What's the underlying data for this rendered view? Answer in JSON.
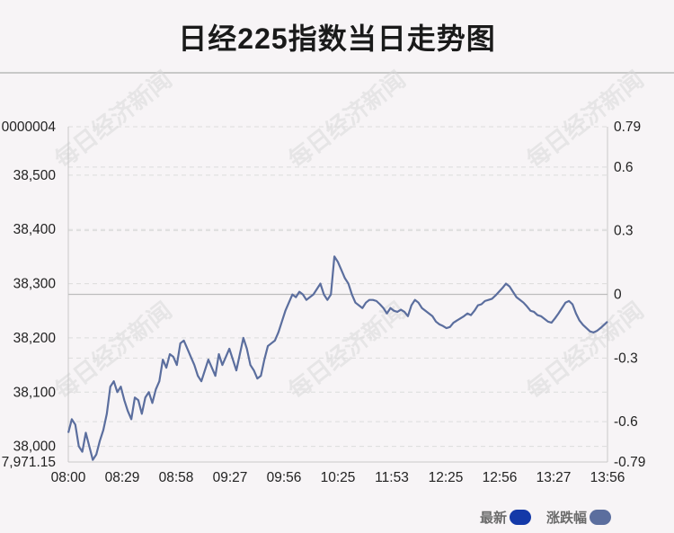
{
  "header": {
    "title": "日经225指数当日走势图"
  },
  "legend": [
    {
      "label": "最新",
      "color": "#1439a8"
    },
    {
      "label": "涨跌幅",
      "color": "#5b6e9e"
    }
  ],
  "watermark_text": "每日经济新闻",
  "colors": {
    "line": "#5b6e9e",
    "grid": "#dcdcdc",
    "baseline": "#bdbdbd"
  },
  "chart_data": {
    "type": "line",
    "title": "日经225指数当日走势图",
    "x_tick_labels": [
      "08:00",
      "08:29",
      "08:58",
      "09:27",
      "09:56",
      "10:25",
      "11:53",
      "12:25",
      "12:56",
      "13:27",
      "13:56"
    ],
    "y_left_tick_labels": [
      "38,000",
      "38,100",
      "38,200",
      "38,300",
      "38,400",
      "38,500"
    ],
    "y_left_tick_values": [
      38000,
      38100,
      38200,
      38300,
      38400,
      38500
    ],
    "y_left_top_label": "0000004",
    "y_left_bottom_label": "7,971.15",
    "ylim_left": [
      37971.15,
      38589.3
    ],
    "y_right_tick_labels": [
      "0.79",
      "0.6",
      "0.3",
      "0",
      "-0.3",
      "-0.6",
      "-0.79"
    ],
    "y_right_tick_values": [
      0.79,
      0.6,
      0.3,
      0,
      -0.3,
      -0.6,
      -0.79
    ],
    "ylim_right": [
      -0.79,
      0.79
    ],
    "grid": true,
    "legend_position": "bottom-right",
    "series": [
      {
        "name": "最新",
        "values": [
          38025,
          38050,
          38040,
          38000,
          37990,
          38025,
          38000,
          37975,
          37985,
          38010,
          38030,
          38060,
          38110,
          38120,
          38100,
          38110,
          38085,
          38065,
          38050,
          38090,
          38085,
          38060,
          38090,
          38100,
          38080,
          38105,
          38120,
          38160,
          38145,
          38170,
          38165,
          38150,
          38190,
          38195,
          38180,
          38165,
          38150,
          38130,
          38120,
          38140,
          38160,
          38145,
          38130,
          38170,
          38150,
          38165,
          38180,
          38160,
          38140,
          38170,
          38200,
          38180,
          38150,
          38140,
          38125,
          38130,
          38160,
          38185,
          38190,
          38195,
          38210,
          38230,
          38250,
          38265,
          38280,
          38275,
          38285,
          38280,
          38270,
          38275,
          38280,
          38290,
          38300,
          38280,
          38270,
          38280,
          38350,
          38340,
          38325,
          38310,
          38300,
          38280,
          38265,
          38260,
          38255,
          38265,
          38270,
          38270,
          38268,
          38262,
          38255,
          38245,
          38255,
          38250,
          38248,
          38252,
          38248,
          38240,
          38260,
          38270,
          38265,
          38255,
          38250,
          38245,
          38240,
          38230,
          38225,
          38222,
          38218,
          38220,
          38228,
          38232,
          38236,
          38240,
          38245,
          38242,
          38250,
          38260,
          38262,
          38268,
          38270,
          38272,
          38278,
          38285,
          38292,
          38300,
          38295,
          38285,
          38275,
          38270,
          38265,
          38258,
          38250,
          38248,
          38242,
          38240,
          38235,
          38230,
          38228,
          38236,
          38245,
          38255,
          38265,
          38268,
          38262,
          38245,
          38232,
          38224,
          38218,
          38212,
          38210,
          38213,
          38218,
          38224,
          38230
        ]
      }
    ]
  }
}
